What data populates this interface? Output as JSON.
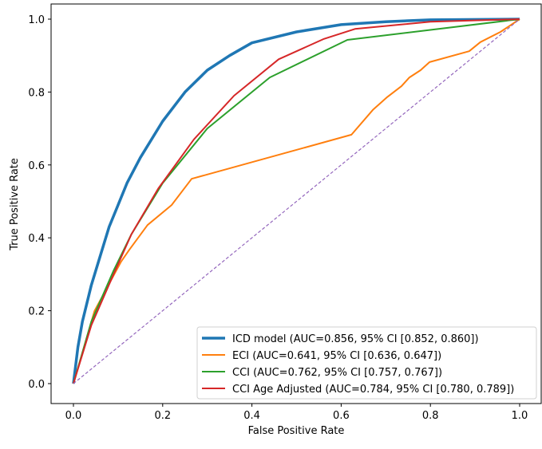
{
  "chart_data": {
    "type": "line",
    "title": "",
    "xlabel": "False Positive Rate",
    "ylabel": "True Positive Rate",
    "xlim": [
      -0.05,
      1.05
    ],
    "ylim": [
      -0.05,
      1.05
    ],
    "xticks": [
      "0.0",
      "0.2",
      "0.4",
      "0.6",
      "0.8",
      "1.0"
    ],
    "yticks": [
      "0.0",
      "0.2",
      "0.4",
      "0.6",
      "0.8",
      "1.0"
    ],
    "grid": false,
    "legend_position": "lower-right",
    "series": [
      {
        "name": "ICD model (AUC=0.856, 95% CI [0.852, 0.860])",
        "color": "#1f77b4",
        "points": [
          [
            0,
            0
          ],
          [
            0.01,
            0.1
          ],
          [
            0.02,
            0.17
          ],
          [
            0.04,
            0.27
          ],
          [
            0.06,
            0.35
          ],
          [
            0.08,
            0.43
          ],
          [
            0.1,
            0.49
          ],
          [
            0.12,
            0.55
          ],
          [
            0.15,
            0.62
          ],
          [
            0.2,
            0.72
          ],
          [
            0.25,
            0.8
          ],
          [
            0.3,
            0.86
          ],
          [
            0.35,
            0.9
          ],
          [
            0.4,
            0.935
          ],
          [
            0.5,
            0.965
          ],
          [
            0.6,
            0.985
          ],
          [
            0.7,
            0.993
          ],
          [
            0.8,
            0.998
          ],
          [
            1,
            1
          ]
        ]
      },
      {
        "name": "ECI (AUC=0.641, 95% CI [0.636, 0.647])",
        "color": "#ff7f0e",
        "points": [
          [
            0,
            0
          ],
          [
            0.047,
            0.199
          ],
          [
            0.107,
            0.335
          ],
          [
            0.125,
            0.367
          ],
          [
            0.166,
            0.435
          ],
          [
            0.22,
            0.49
          ],
          [
            0.265,
            0.562
          ],
          [
            0.623,
            0.683
          ],
          [
            0.671,
            0.751
          ],
          [
            0.703,
            0.786
          ],
          [
            0.735,
            0.816
          ],
          [
            0.753,
            0.84
          ],
          [
            0.778,
            0.86
          ],
          [
            0.798,
            0.882
          ],
          [
            0.887,
            0.912
          ],
          [
            0.912,
            0.937
          ],
          [
            0.957,
            0.965
          ],
          [
            1,
            1
          ]
        ]
      },
      {
        "name": "CCI (AUC=0.762, 95% CI [0.757, 0.767])",
        "color": "#2ca02c",
        "points": [
          [
            0,
            0
          ],
          [
            0.04,
            0.17
          ],
          [
            0.09,
            0.31
          ],
          [
            0.13,
            0.41
          ],
          [
            0.2,
            0.55
          ],
          [
            0.3,
            0.7
          ],
          [
            0.44,
            0.84
          ],
          [
            0.614,
            0.943
          ],
          [
            1,
            1
          ]
        ]
      },
      {
        "name": "CCI Age Adjusted (AUC=0.784, 95% CI [0.780, 0.789])",
        "color": "#d62728",
        "points": [
          [
            0,
            0
          ],
          [
            0.04,
            0.16
          ],
          [
            0.09,
            0.3
          ],
          [
            0.13,
            0.41
          ],
          [
            0.19,
            0.535
          ],
          [
            0.27,
            0.67
          ],
          [
            0.36,
            0.79
          ],
          [
            0.46,
            0.89
          ],
          [
            0.56,
            0.945
          ],
          [
            0.631,
            0.973
          ],
          [
            0.8,
            0.993
          ],
          [
            1,
            1
          ]
        ]
      }
    ],
    "reference_line": {
      "color": "#9467bd",
      "style": "dashed",
      "points": [
        [
          0,
          0
        ],
        [
          1,
          1
        ]
      ]
    }
  }
}
